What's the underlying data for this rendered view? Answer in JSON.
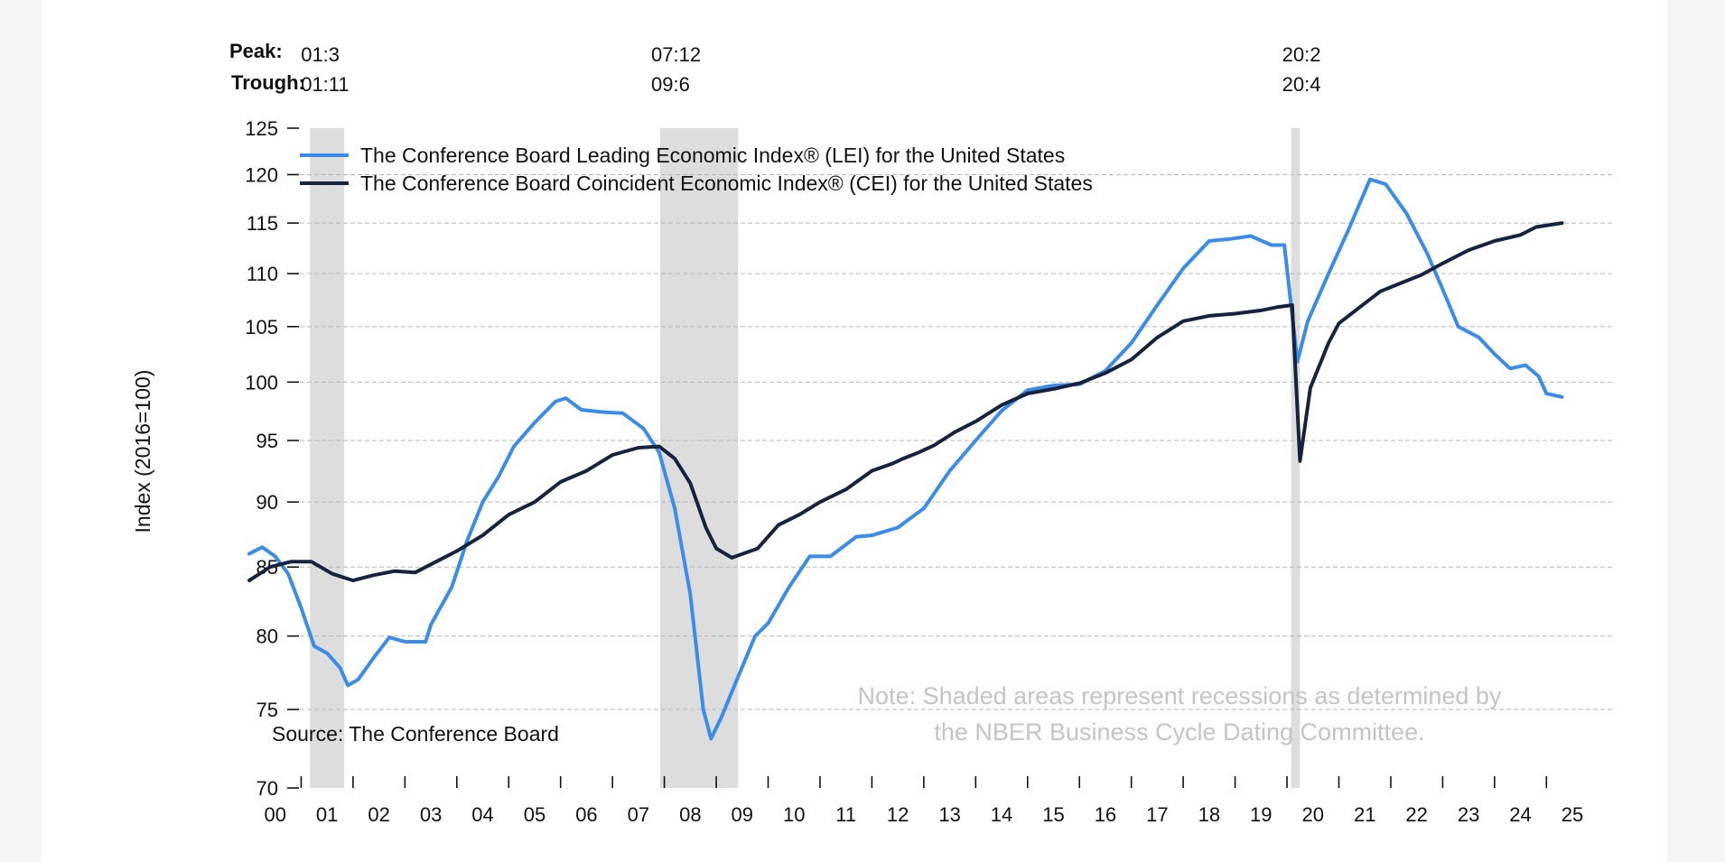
{
  "chart_data": {
    "type": "line",
    "title": "",
    "ylabel": "Index (2016=100)",
    "xlabel": "",
    "ylim": [
      70,
      125
    ],
    "y_scale": "log",
    "yticks": [
      70,
      75,
      80,
      85,
      90,
      95,
      100,
      105,
      110,
      115,
      120,
      125
    ],
    "xlim": [
      2000.0,
      2025.5
    ],
    "x_tick_labels": [
      "00",
      "01",
      "02",
      "03",
      "04",
      "05",
      "06",
      "07",
      "08",
      "09",
      "10",
      "11",
      "12",
      "13",
      "14",
      "15",
      "16",
      "17",
      "18",
      "19",
      "20",
      "21",
      "22",
      "23",
      "24",
      "25"
    ],
    "grid": true,
    "legend_position": "top-left",
    "recession_header": {
      "peak": "Peak:",
      "trough": "Trough:"
    },
    "recessions": [
      {
        "peak": "01:3",
        "trough": "01:11",
        "start": 2001.17,
        "end": 2001.83
      },
      {
        "peak": "07:12",
        "trough": "09:6",
        "start": 2007.92,
        "end": 2009.42
      },
      {
        "peak": "20:2",
        "trough": "20:4",
        "start": 2020.08,
        "end": 2020.25
      }
    ],
    "series": [
      {
        "name": "The Conference Board Leading Economic Index® (LEI) for the United States",
        "color": "#3a8ce8",
        "points": [
          [
            2000.0,
            86
          ],
          [
            2000.25,
            86.5
          ],
          [
            2000.5,
            85.8
          ],
          [
            2000.75,
            84.5
          ],
          [
            2001.0,
            82
          ],
          [
            2001.25,
            79.3
          ],
          [
            2001.5,
            78.8
          ],
          [
            2001.75,
            77.8
          ],
          [
            2001.9,
            76.6
          ],
          [
            2002.1,
            77
          ],
          [
            2002.4,
            78.5
          ],
          [
            2002.7,
            79.9
          ],
          [
            2003.0,
            79.6
          ],
          [
            2003.4,
            79.6
          ],
          [
            2003.5,
            80.8
          ],
          [
            2003.9,
            83.5
          ],
          [
            2004.2,
            87
          ],
          [
            2004.5,
            90
          ],
          [
            2004.8,
            92
          ],
          [
            2005.1,
            94.5
          ],
          [
            2005.5,
            96.5
          ],
          [
            2005.9,
            98.3
          ],
          [
            2006.1,
            98.6
          ],
          [
            2006.4,
            97.6
          ],
          [
            2006.8,
            97.4
          ],
          [
            2007.2,
            97.3
          ],
          [
            2007.6,
            96
          ],
          [
            2007.9,
            94
          ],
          [
            2008.2,
            89.5
          ],
          [
            2008.5,
            83
          ],
          [
            2008.75,
            75
          ],
          [
            2008.9,
            73.1
          ],
          [
            2009.1,
            74.5
          ],
          [
            2009.4,
            77
          ],
          [
            2009.75,
            80
          ],
          [
            2010.0,
            80.9
          ],
          [
            2010.4,
            83.5
          ],
          [
            2010.8,
            85.8
          ],
          [
            2011.2,
            85.8
          ],
          [
            2011.7,
            87.3
          ],
          [
            2012.0,
            87.4
          ],
          [
            2012.5,
            88
          ],
          [
            2013.0,
            89.5
          ],
          [
            2013.5,
            92.5
          ],
          [
            2014.0,
            95
          ],
          [
            2014.5,
            97.5
          ],
          [
            2015.0,
            99.3
          ],
          [
            2015.5,
            99.7
          ],
          [
            2016.0,
            99.8
          ],
          [
            2016.5,
            101
          ],
          [
            2017.0,
            103.5
          ],
          [
            2017.5,
            107
          ],
          [
            2018.0,
            110.5
          ],
          [
            2018.5,
            113.2
          ],
          [
            2018.9,
            113.4
          ],
          [
            2019.3,
            113.7
          ],
          [
            2019.7,
            112.8
          ],
          [
            2019.95,
            112.8
          ],
          [
            2020.2,
            101.8
          ],
          [
            2020.4,
            105.5
          ],
          [
            2020.8,
            110
          ],
          [
            2021.2,
            114.5
          ],
          [
            2021.6,
            119.5
          ],
          [
            2021.9,
            119
          ],
          [
            2022.3,
            116
          ],
          [
            2022.7,
            112
          ],
          [
            2023.0,
            108.5
          ],
          [
            2023.3,
            105
          ],
          [
            2023.7,
            104
          ],
          [
            2024.0,
            102.5
          ],
          [
            2024.3,
            101.2
          ],
          [
            2024.6,
            101.5
          ],
          [
            2024.85,
            100.5
          ],
          [
            2025.0,
            99
          ],
          [
            2025.3,
            98.7
          ]
        ]
      },
      {
        "name": "The Conference Board Coincident Economic Index® (CEI) for the United States",
        "color": "#15233f",
        "points": [
          [
            2000.0,
            84
          ],
          [
            2000.4,
            85
          ],
          [
            2000.8,
            85.4
          ],
          [
            2001.2,
            85.4
          ],
          [
            2001.6,
            84.5
          ],
          [
            2002.0,
            84
          ],
          [
            2002.4,
            84.4
          ],
          [
            2002.8,
            84.7
          ],
          [
            2003.2,
            84.6
          ],
          [
            2003.6,
            85.4
          ],
          [
            2004.0,
            86.2
          ],
          [
            2004.5,
            87.4
          ],
          [
            2005.0,
            89
          ],
          [
            2005.5,
            90
          ],
          [
            2006.0,
            91.6
          ],
          [
            2006.5,
            92.5
          ],
          [
            2007.0,
            93.8
          ],
          [
            2007.5,
            94.4
          ],
          [
            2007.9,
            94.5
          ],
          [
            2008.2,
            93.5
          ],
          [
            2008.5,
            91.5
          ],
          [
            2008.8,
            88
          ],
          [
            2009.0,
            86.4
          ],
          [
            2009.3,
            85.7
          ],
          [
            2009.8,
            86.4
          ],
          [
            2010.2,
            88.2
          ],
          [
            2010.6,
            89
          ],
          [
            2011.0,
            90
          ],
          [
            2011.5,
            91
          ],
          [
            2012.0,
            92.5
          ],
          [
            2012.4,
            93.1
          ],
          [
            2012.6,
            93.5
          ],
          [
            2012.9,
            94
          ],
          [
            2013.2,
            94.6
          ],
          [
            2013.6,
            95.7
          ],
          [
            2014.0,
            96.6
          ],
          [
            2014.5,
            98
          ],
          [
            2015.0,
            99
          ],
          [
            2015.5,
            99.4
          ],
          [
            2016.0,
            99.9
          ],
          [
            2016.5,
            100.8
          ],
          [
            2017.0,
            102
          ],
          [
            2017.5,
            104
          ],
          [
            2018.0,
            105.5
          ],
          [
            2018.5,
            106
          ],
          [
            2019.0,
            106.2
          ],
          [
            2019.5,
            106.5
          ],
          [
            2019.8,
            106.8
          ],
          [
            2020.1,
            107
          ],
          [
            2020.25,
            93.3
          ],
          [
            2020.45,
            99.5
          ],
          [
            2020.8,
            103.5
          ],
          [
            2021.0,
            105.3
          ],
          [
            2021.4,
            106.8
          ],
          [
            2021.8,
            108.3
          ],
          [
            2022.2,
            109.1
          ],
          [
            2022.6,
            109.9
          ],
          [
            2023.0,
            111
          ],
          [
            2023.5,
            112.3
          ],
          [
            2024.0,
            113.2
          ],
          [
            2024.5,
            113.8
          ],
          [
            2024.8,
            114.6
          ],
          [
            2025.3,
            115
          ]
        ]
      }
    ],
    "annotations": [
      "Note: Shaded areas represent recessions as determined by",
      "the NBER Business Cycle Dating Committee.",
      "Source: The Conference Board"
    ]
  }
}
